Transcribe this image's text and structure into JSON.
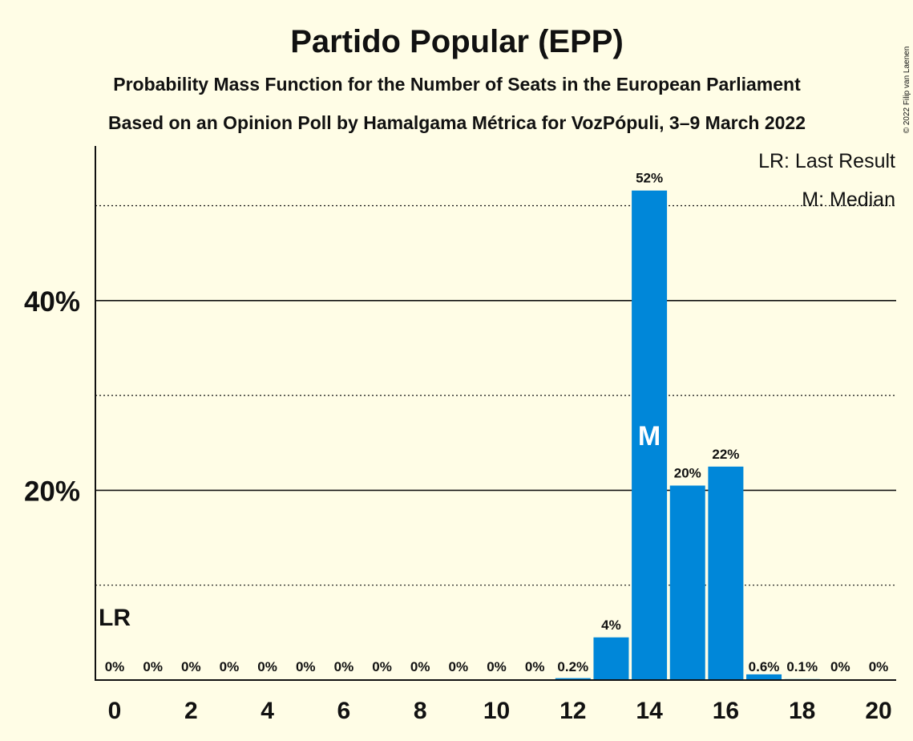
{
  "title": "Partido Popular (EPP)",
  "subtitle1": "Probability Mass Function for the Number of Seats in the European Parliament",
  "subtitle2": "Based on an Opinion Poll by Hamalgama Métrica for VozPópuli, 3–9 March 2022",
  "legend": {
    "lr": "LR: Last Result",
    "median": "M: Median"
  },
  "copyright": "© 2022 Filip van Laenen",
  "colors": {
    "bar": "#0087D9",
    "background": "#FFFDE6",
    "text": "#111111"
  },
  "chart_data": {
    "type": "bar",
    "x": [
      0,
      1,
      2,
      3,
      4,
      5,
      6,
      7,
      8,
      9,
      10,
      11,
      12,
      13,
      14,
      15,
      16,
      17,
      18,
      19,
      20
    ],
    "values": [
      0,
      0,
      0,
      0,
      0,
      0,
      0,
      0,
      0,
      0,
      0,
      0,
      0.2,
      4.5,
      51.6,
      20.5,
      22.5,
      0.6,
      0.1,
      0,
      0
    ],
    "value_labels": [
      "0%",
      "0%",
      "0%",
      "0%",
      "0%",
      "0%",
      "0%",
      "0%",
      "0%",
      "0%",
      "0%",
      "0%",
      "0.2%",
      "4%",
      "52%",
      "20%",
      "22%",
      "0.6%",
      "0.1%",
      "0%",
      "0%"
    ],
    "x_tick_labels": [
      "0",
      "2",
      "4",
      "6",
      "8",
      "10",
      "12",
      "14",
      "16",
      "18",
      "20"
    ],
    "y_tick_labels": [
      "20%",
      "40%"
    ],
    "ylim": [
      0,
      56.3
    ],
    "major_gridlines": [
      20,
      40
    ],
    "minor_gridlines": [
      10,
      30,
      50
    ],
    "last_result_seat": 0,
    "last_result_label": "LR",
    "median_seat": 14,
    "median_label": "M",
    "legend_position": "top-right"
  }
}
